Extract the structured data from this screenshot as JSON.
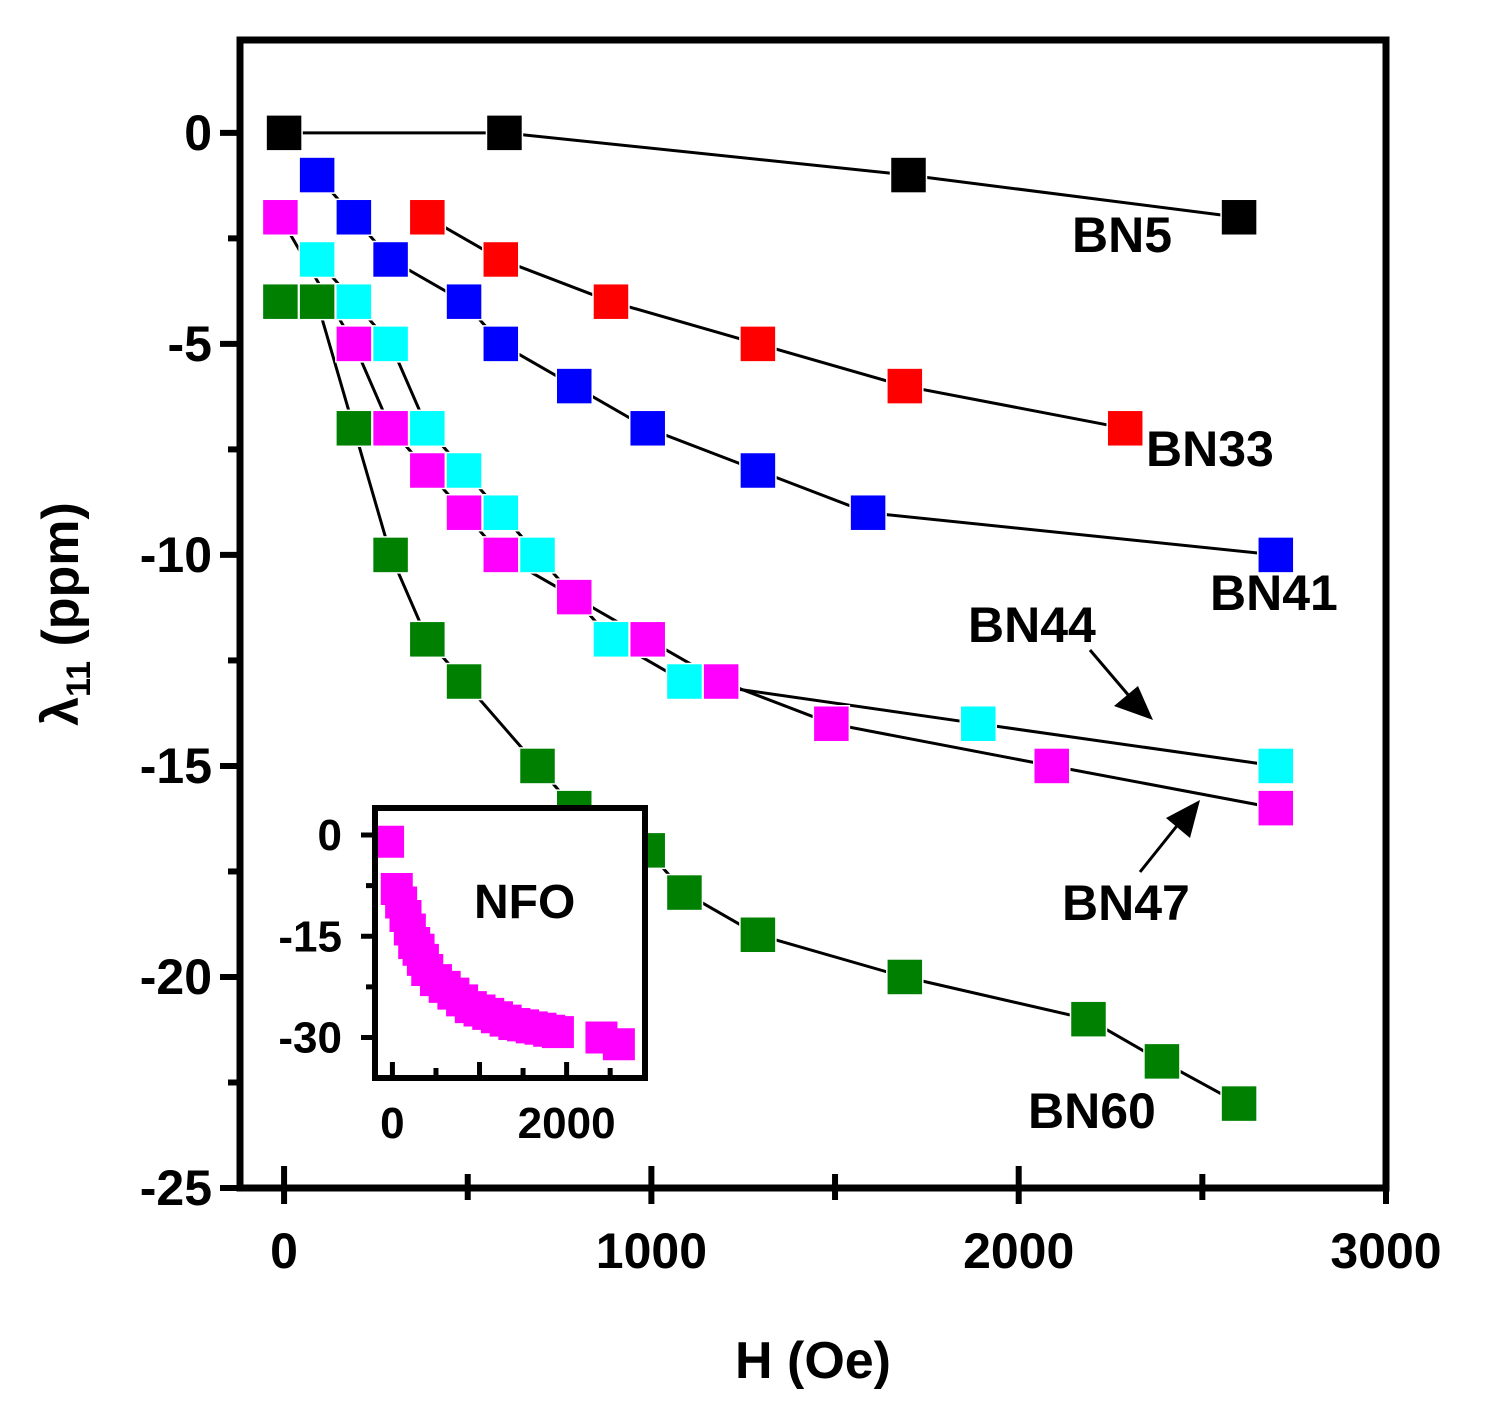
{
  "chart_data": [
    {
      "type": "line",
      "title": "",
      "xlabel": "H (Oe)",
      "ylabel": "λ",
      "ylabel_sub": "11",
      "ylabel_unit": " (ppm)",
      "xlim": [
        -120,
        3000
      ],
      "ylim": [
        -25,
        2.2
      ],
      "xticks": [
        0,
        1000,
        2000,
        3000
      ],
      "yticks": [
        0,
        -5,
        -10,
        -15,
        -20,
        -25
      ],
      "grid": false,
      "series": [
        {
          "name": "BN5",
          "color": "#000000",
          "x": [
            0,
            600,
            1700,
            2600
          ],
          "y": [
            0,
            0,
            -1,
            -2
          ]
        },
        {
          "name": "BN33",
          "color": "#ff0000",
          "x": [
            390,
            590,
            890,
            1290,
            1690,
            2290
          ],
          "y": [
            -2,
            -3,
            -4,
            -5,
            -6,
            -7
          ]
        },
        {
          "name": "BN41",
          "color": "#0000ff",
          "x": [
            90,
            190,
            290,
            490,
            590,
            790,
            990,
            1290,
            1590,
            2700
          ],
          "y": [
            -1,
            -2,
            -3,
            -4,
            -5,
            -6,
            -7,
            -8,
            -9,
            -10
          ]
        },
        {
          "name": "BN44",
          "color": "#00ffff",
          "x": [
            90,
            190,
            290,
            390,
            490,
            590,
            690,
            890,
            1090,
            1890,
            2700
          ],
          "y": [
            -3,
            -4,
            -5,
            -7,
            -8,
            -9,
            -10,
            -12,
            -13,
            -14,
            -15
          ]
        },
        {
          "name": "BN47",
          "color": "#ff00ff",
          "x": [
            -10,
            190,
            290,
            390,
            490,
            590,
            790,
            990,
            1190,
            1490,
            2090,
            2700
          ],
          "y": [
            -2,
            -5,
            -7,
            -8,
            -9,
            -10,
            -11,
            -12,
            -13,
            -14,
            -15,
            -16
          ]
        },
        {
          "name": "BN60",
          "color": "#008000",
          "x": [
            -10,
            90,
            190,
            290,
            390,
            490,
            690,
            790,
            990,
            1090,
            1290,
            1690,
            2190,
            2390,
            2600
          ],
          "y": [
            -4,
            -4,
            -7,
            -10,
            -12,
            -13,
            -15,
            -16,
            -17,
            -18,
            -19,
            -20,
            -21,
            -22,
            -23
          ]
        }
      ],
      "annotations": [
        {
          "text": "BN5"
        },
        {
          "text": "BN33"
        },
        {
          "text": "BN41"
        },
        {
          "text": "BN44"
        },
        {
          "text": "BN47"
        },
        {
          "text": "BN60"
        }
      ]
    },
    {
      "type": "scatter",
      "title": "NFO",
      "xlim": [
        -200,
        2900
      ],
      "ylim": [
        -36,
        4
      ],
      "xticks": [
        0,
        2000
      ],
      "yticks": [
        0,
        -15,
        -30
      ],
      "series": [
        {
          "name": "NFO",
          "color": "#ff00ff",
          "x": [
            -50,
            50,
            100,
            150,
            200,
            250,
            300,
            350,
            400,
            500,
            600,
            700,
            800,
            900,
            1000,
            1100,
            1200,
            1300,
            1400,
            1500,
            1600,
            1700,
            1800,
            1900,
            2400,
            2600
          ],
          "y": [
            -1,
            -8,
            -10,
            -12,
            -14,
            -16,
            -17,
            -18.5,
            -20,
            -21.5,
            -22.5,
            -23.5,
            -24.5,
            -25.5,
            -26,
            -26.5,
            -27,
            -27.5,
            -28,
            -28.2,
            -28.5,
            -28.7,
            -29,
            -29.2,
            -30,
            -31
          ]
        }
      ]
    }
  ]
}
